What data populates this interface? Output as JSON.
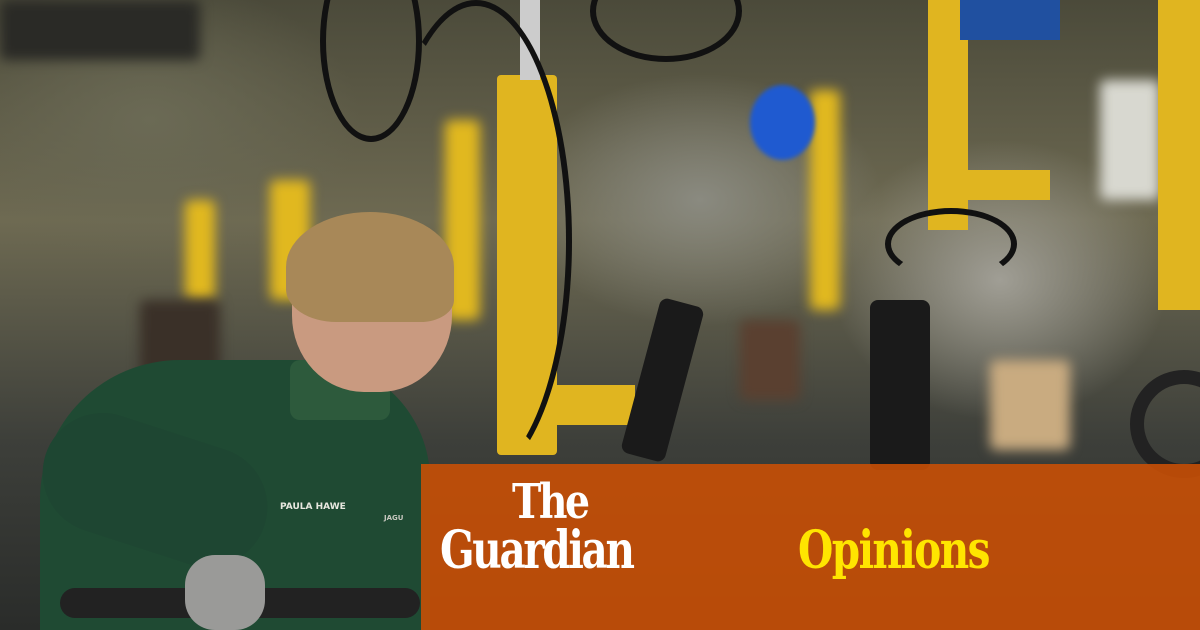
{
  "image": {
    "description_kind": "photo",
    "badge_name": "PAULA HAWE",
    "badge_logo": "JAGU"
  },
  "branding": {
    "line1": "The",
    "line2": "Guardian",
    "section": "Opinions",
    "overlay_color": "#cc5005",
    "title_color": "#ffffff",
    "section_color": "#ffe500"
  }
}
